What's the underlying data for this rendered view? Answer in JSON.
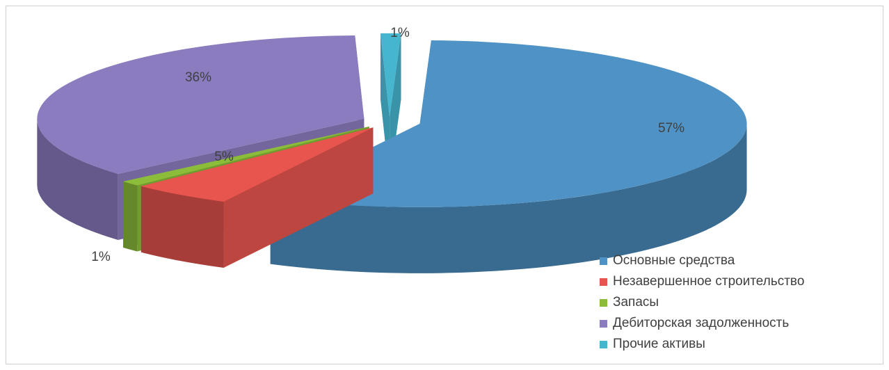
{
  "chart_data": {
    "type": "pie",
    "style": "3d-exploded",
    "title": "",
    "categories": [
      "Основные средства",
      "Незавершенное строительство",
      "Запасы",
      "Дебиторская задолженность",
      "Прочие активы"
    ],
    "values": [
      57,
      5,
      1,
      36,
      1
    ],
    "labels": [
      "57%",
      "5%",
      "1%",
      "36%",
      "1%"
    ],
    "legend_position": "bottom-right"
  },
  "colors": {
    "Основные средства": "#4f93c6",
    "Незавершенное строительство": "#e8554f",
    "Запасы": "#8bbd3b",
    "Дебиторская задолженность": "#8b7cbf",
    "Прочие активы": "#46b5ce"
  }
}
